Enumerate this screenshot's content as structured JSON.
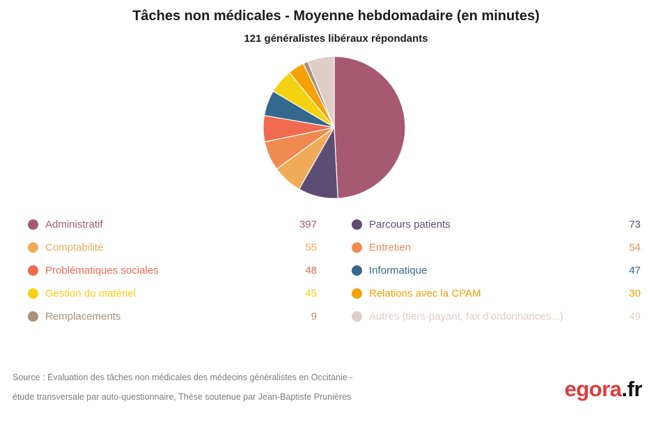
{
  "header": {
    "title": "Tâches non médicales - Moyenne hebdomadaire (en minutes)",
    "subtitle": "121 généralistes libéraux répondants"
  },
  "chart_data": {
    "type": "pie",
    "title": "Tâches non médicales - Moyenne hebdomadaire (en minutes)",
    "subtitle": "121 généralistes libéraux répondants",
    "start_angle": "12 o'clock",
    "direction": "clockwise",
    "legend_position": "below, two columns, value right-aligned",
    "slices": [
      {
        "label": "Administratif",
        "value": 397,
        "color": "#a55a72"
      },
      {
        "label": "Parcours patients",
        "value": 73,
        "color": "#5c4d75"
      },
      {
        "label": "Comptabilité",
        "value": 55,
        "color": "#efab58"
      },
      {
        "label": "Entretien",
        "value": 54,
        "color": "#ef8a50"
      },
      {
        "label": "Problématiques sociales",
        "value": 48,
        "color": "#ef6a4e"
      },
      {
        "label": "Informatique",
        "value": 47,
        "color": "#34688e"
      },
      {
        "label": "Gestion du matériel",
        "value": 45,
        "color": "#f5d211"
      },
      {
        "label": "Relations avec la CPAM",
        "value": 30,
        "color": "#f5a005"
      },
      {
        "label": "Remplacements",
        "value": 9,
        "color": "#ab9078"
      },
      {
        "label": "Autres (tiers-payant, fax d'ordonnances...)",
        "value": 49,
        "color": "#ddcdc5"
      }
    ]
  },
  "footer": {
    "source_line1": "Source : Évaluation des tâches non médicales des médecins généralistes en Occitanie -",
    "source_line2": "étude transversale par auto-questionnaire, Thèse soutenue par Jean-Baptiste Prunières",
    "logo_primary": "egora",
    "logo_suffix": ".fr",
    "logo_primary_color": "#e23b3b",
    "logo_suffix_color": "#111111"
  }
}
